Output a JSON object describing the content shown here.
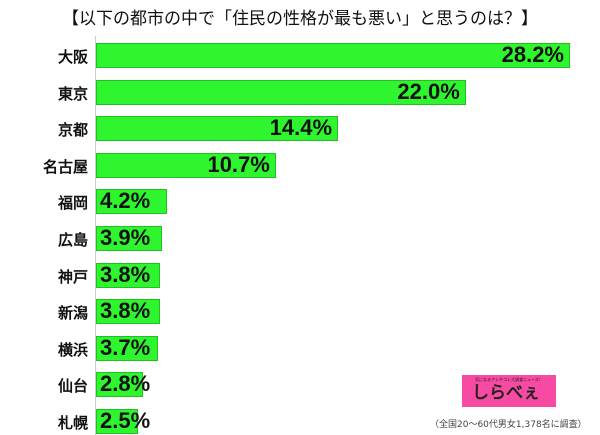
{
  "chart_data": {
    "type": "bar",
    "orientation": "horizontal",
    "title": "【以下の都市の中で「住民の性格が最も悪い」と思うのは？】",
    "categories": [
      "大阪",
      "東京",
      "京都",
      "名古屋",
      "福岡",
      "広島",
      "神戸",
      "新潟",
      "横浜",
      "仙台",
      "札幌"
    ],
    "values": [
      28.2,
      22.0,
      14.4,
      10.7,
      4.2,
      3.9,
      3.8,
      3.8,
      3.7,
      2.8,
      2.5
    ],
    "labels": [
      "28.2%",
      "22.0%",
      "14.4%",
      "10.7%",
      "4.2%",
      "3.9%",
      "3.8%",
      "3.8%",
      "3.7%",
      "2.8%",
      "2.5%"
    ],
    "bar_color": "#2ef52e",
    "grid": false,
    "xlim": [
      0,
      28.2
    ]
  },
  "logo": {
    "tagline": "気になるアレやコレ大調査ニュース！",
    "name": "しらべぇ",
    "color": "#f74aa2"
  },
  "footnote": "（全国20〜60代男女1,378名に調査）"
}
